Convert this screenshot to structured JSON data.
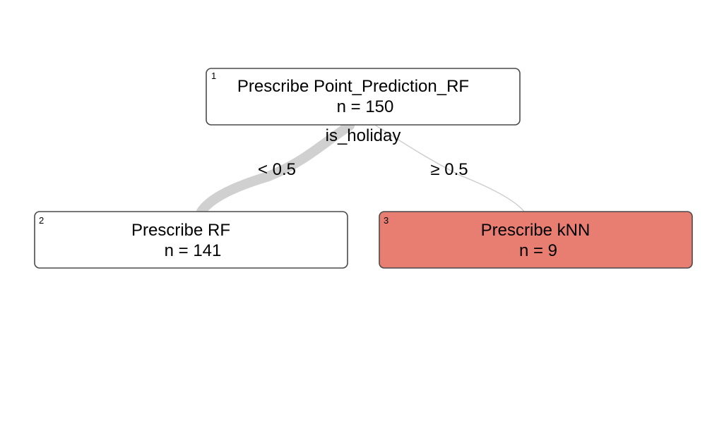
{
  "tree": {
    "nodes": [
      {
        "id": "1",
        "label": "Prescribe Point_Prediction_RF",
        "count": "n = 150",
        "fill": "#ffffff"
      },
      {
        "id": "2",
        "label": "Prescribe RF",
        "count": "n = 141",
        "fill": "#ffffff"
      },
      {
        "id": "3",
        "label": "Prescribe kNN",
        "count": "n = 9",
        "fill": "#e87d72"
      }
    ],
    "split": {
      "variable": "is_holiday",
      "edges": [
        {
          "from": "1",
          "to": "2",
          "label": "< 0.5",
          "n": 141
        },
        {
          "from": "1",
          "to": "3",
          "label": "≥ 0.5",
          "n": 9
        }
      ]
    }
  },
  "colors": {
    "edge": "#d0d0d0",
    "border": "#4a4a4a",
    "highlight": "#e87d72"
  }
}
